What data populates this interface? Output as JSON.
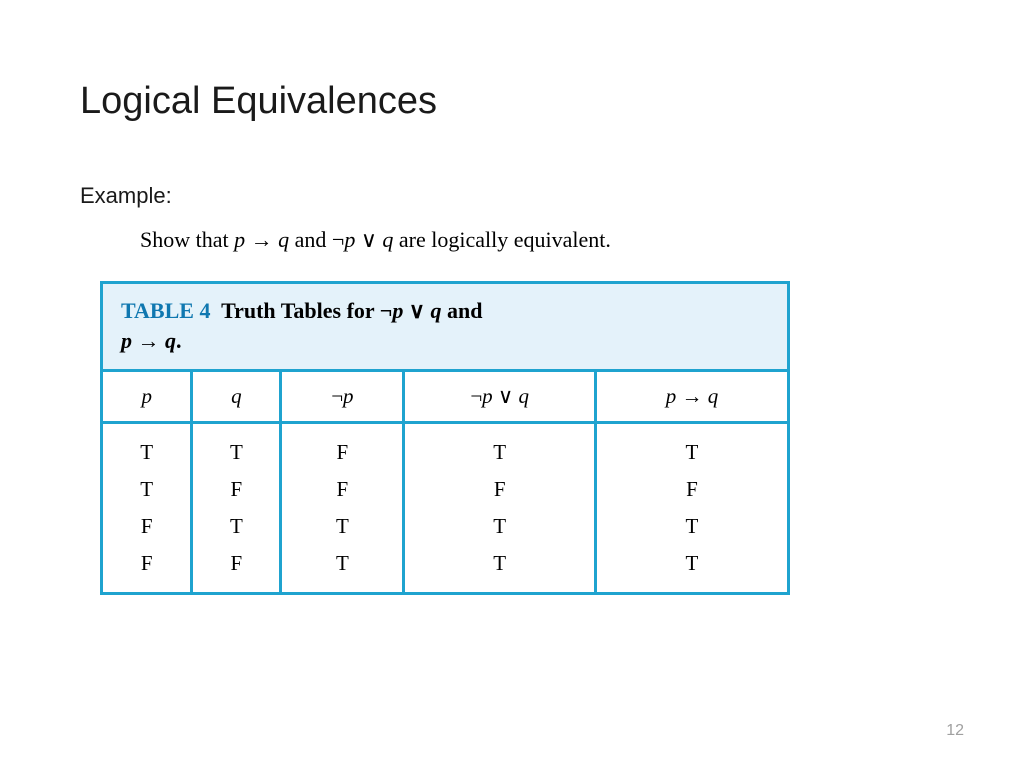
{
  "title": "Logical Equivalences",
  "example_label": "Example:",
  "problem_prefix": "Show that ",
  "problem_mid": " and ",
  "problem_suffix": " are logically equivalent.",
  "expr_implies_html": "<span class='mi'>p</span> → <span class='mi'>q</span>",
  "expr_or_html": "¬<span class='mi'>p</span> ∨ <span class='mi'>q</span>",
  "table": {
    "label": "TABLE 4",
    "caption_mid": "Truth Tables for ",
    "caption_and": " and ",
    "caption_end": ".",
    "border_color": "#1fa3cf",
    "header_bg": "#e4f2fa",
    "label_color": "#1078b0",
    "columns": [
      {
        "html": "p",
        "italic": true,
        "width": "13%"
      },
      {
        "html": "q",
        "italic": true,
        "width": "13%"
      },
      {
        "html": "¬<span class='mi'>p</span>",
        "italic": false,
        "width": "18%"
      },
      {
        "html": "¬<span class='mi'>p</span> ∨ <span class='mi'>q</span>",
        "italic": false,
        "width": "28%"
      },
      {
        "html": "<span class='mi'>p</span> → <span class='mi'>q</span>",
        "italic": false,
        "width": "28%"
      }
    ],
    "rows": [
      [
        "T",
        "T",
        "F",
        "T",
        "T"
      ],
      [
        "T",
        "F",
        "F",
        "F",
        "F"
      ],
      [
        "F",
        "T",
        "T",
        "T",
        "T"
      ],
      [
        "F",
        "F",
        "T",
        "T",
        "T"
      ]
    ]
  },
  "page_number": "12"
}
